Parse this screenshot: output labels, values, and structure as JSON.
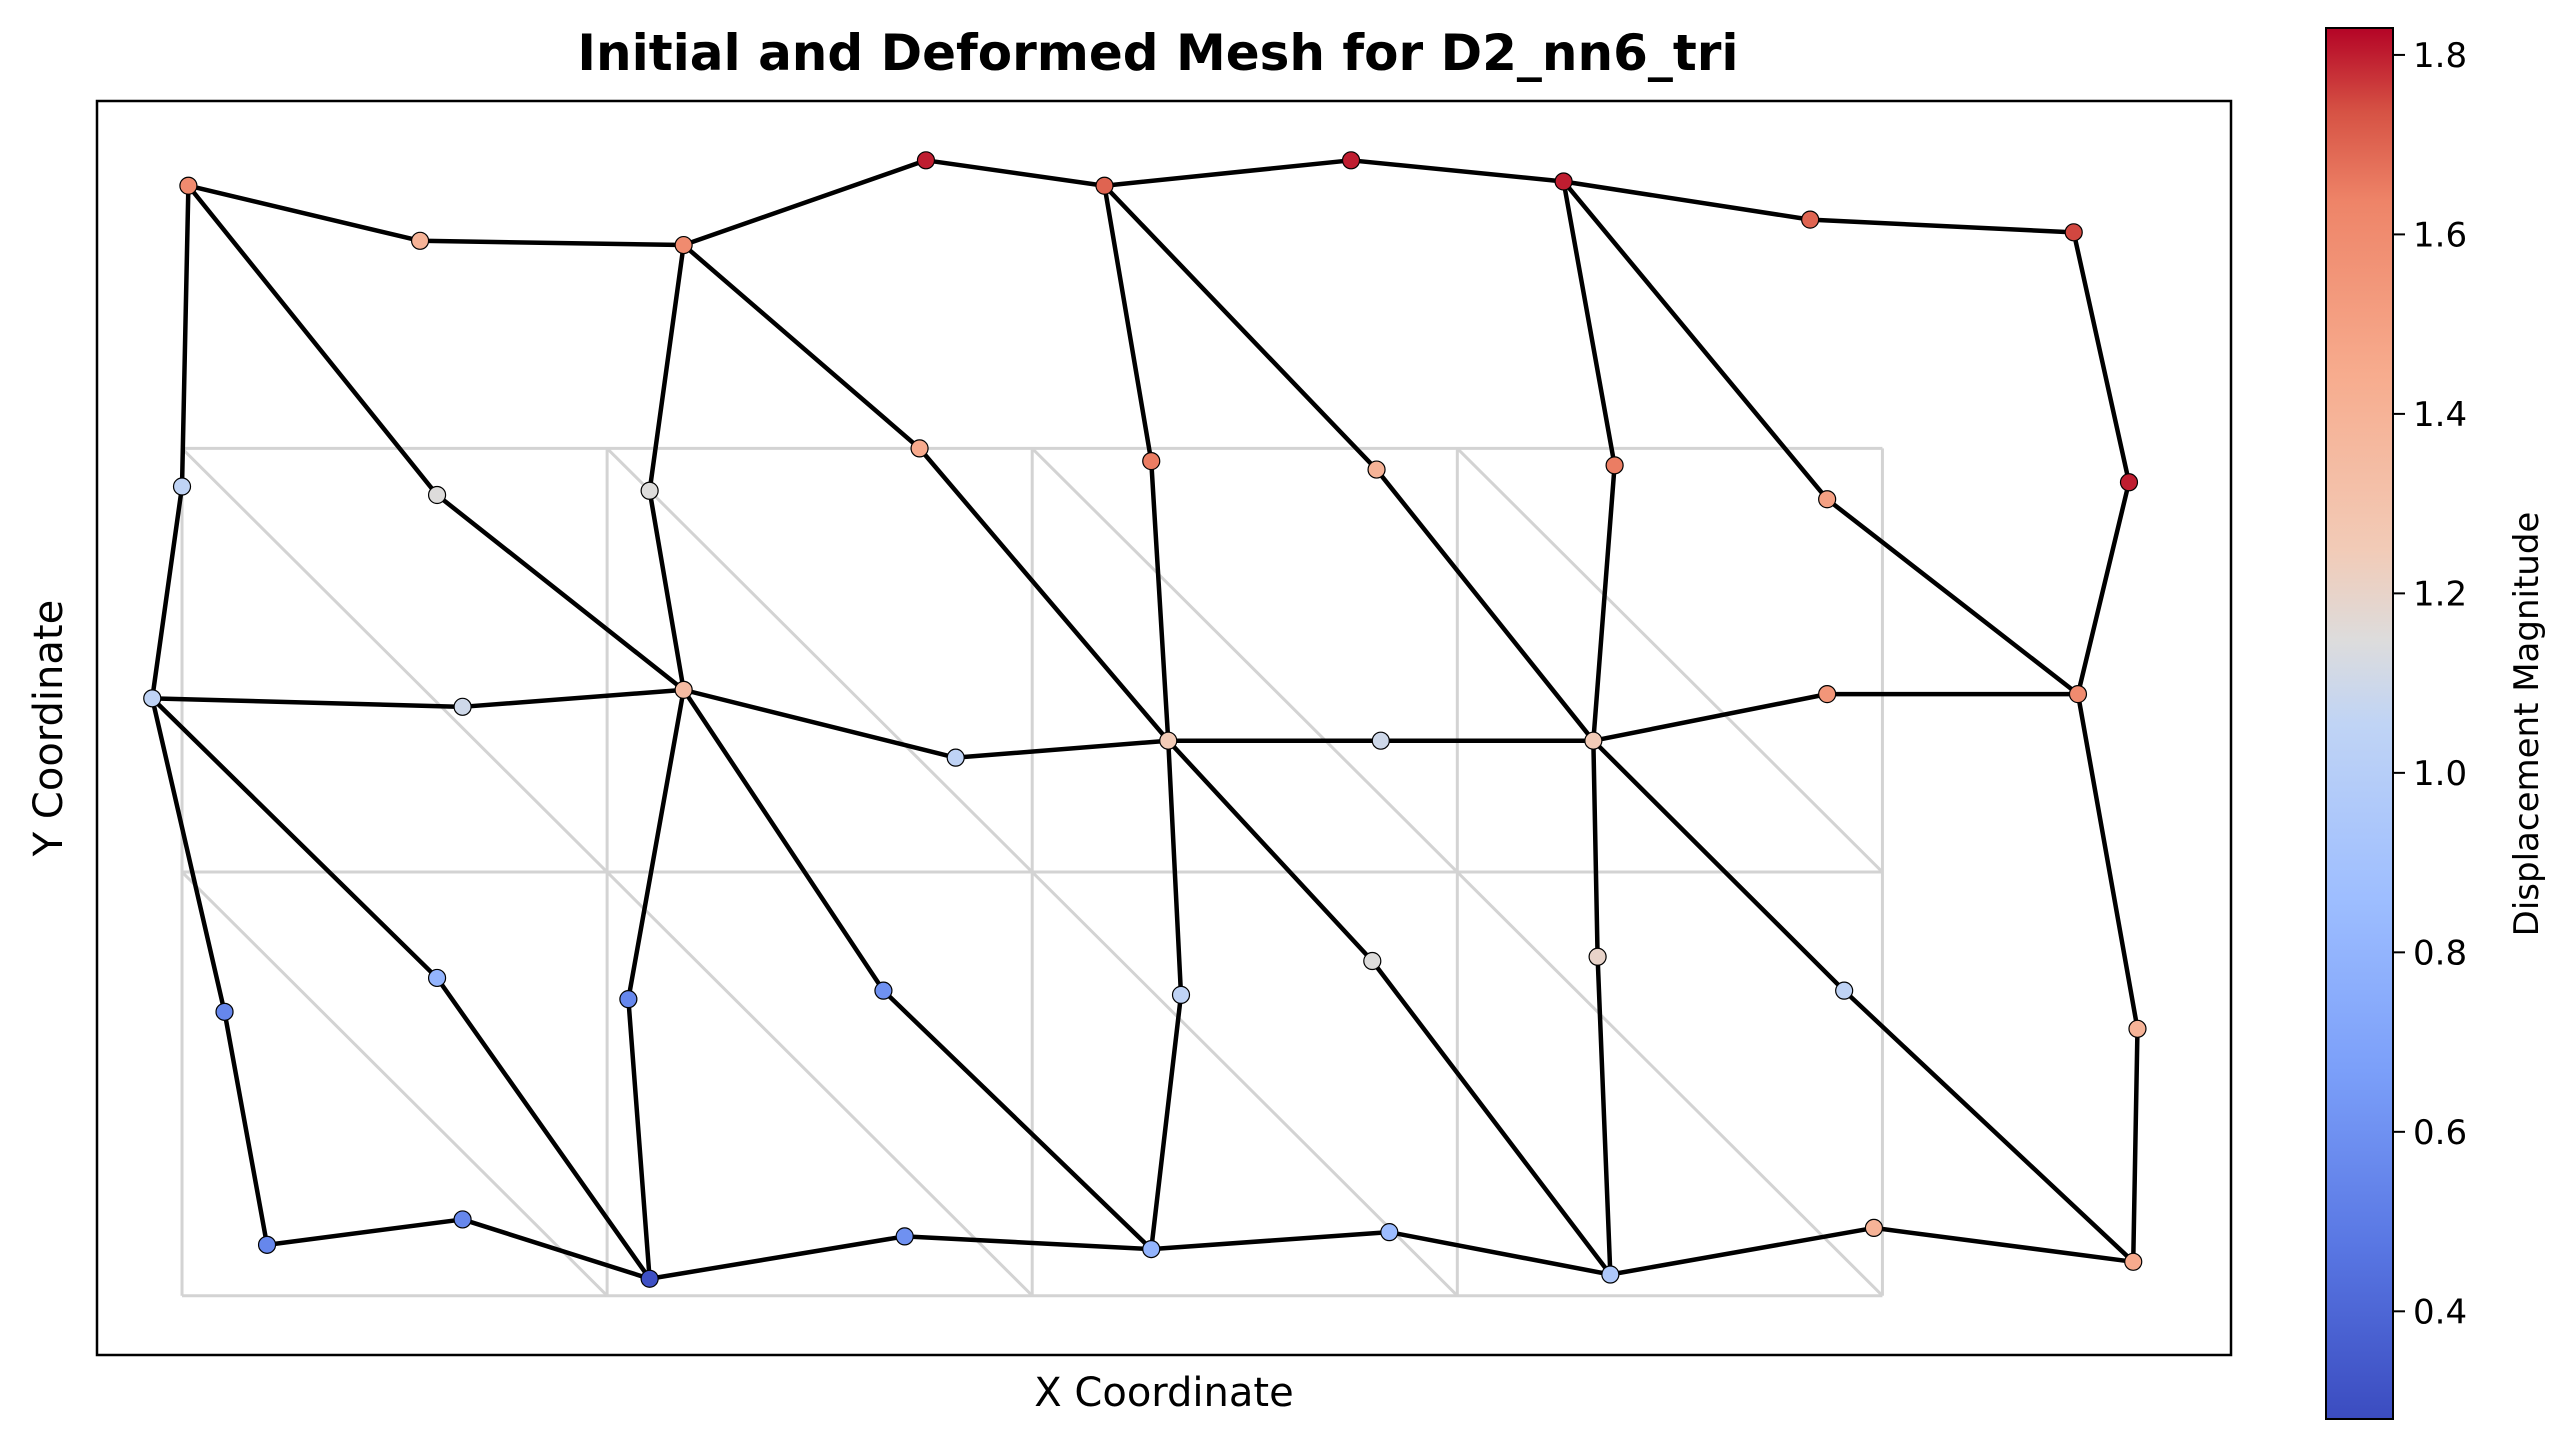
{
  "chart_data": {
    "type": "scatter",
    "title": "Initial and Deformed Mesh for D2_nn6_tri",
    "xlabel": "X Coordinate",
    "ylabel": "Y Coordinate",
    "xlim": [
      -0.2,
      4.82
    ],
    "ylim": [
      -0.14,
      2.82
    ],
    "grid": false,
    "initial_mesh": {
      "color": "#d3d3d3",
      "nx": 4,
      "ny": 2,
      "width": 4,
      "height": 2
    },
    "deformed_mesh": {
      "edge_color": "#000000",
      "nodes": [
        {
          "x": 0.015,
          "y": 2.62,
          "u": 1.6
        },
        {
          "x": 0.56,
          "y": 2.49,
          "u": 1.4
        },
        {
          "x": 1.18,
          "y": 2.48,
          "u": 1.6
        },
        {
          "x": 1.75,
          "y": 2.68,
          "u": 1.8
        },
        {
          "x": 2.17,
          "y": 2.62,
          "u": 1.7
        },
        {
          "x": 2.75,
          "y": 2.68,
          "u": 1.8
        },
        {
          "x": 3.25,
          "y": 2.63,
          "u": 1.8
        },
        {
          "x": 3.83,
          "y": 2.54,
          "u": 1.7
        },
        {
          "x": 4.45,
          "y": 2.51,
          "u": 1.75
        },
        {
          "x": 0.0,
          "y": 1.91,
          "u": 1.05
        },
        {
          "x": 0.6,
          "y": 1.89,
          "u": 1.15
        },
        {
          "x": 1.1,
          "y": 1.9,
          "u": 1.15
        },
        {
          "x": 1.735,
          "y": 2.0,
          "u": 1.45
        },
        {
          "x": 2.28,
          "y": 1.97,
          "u": 1.65
        },
        {
          "x": 2.81,
          "y": 1.95,
          "u": 1.4
        },
        {
          "x": 3.37,
          "y": 1.96,
          "u": 1.65
        },
        {
          "x": 3.87,
          "y": 1.88,
          "u": 1.5
        },
        {
          "x": 4.58,
          "y": 1.92,
          "u": 1.8
        },
        {
          "x": -0.07,
          "y": 1.41,
          "u": 1.05
        },
        {
          "x": 0.66,
          "y": 1.39,
          "u": 1.1
        },
        {
          "x": 1.18,
          "y": 1.43,
          "u": 1.35
        },
        {
          "x": 1.82,
          "y": 1.27,
          "u": 1.05
        },
        {
          "x": 2.32,
          "y": 1.31,
          "u": 1.25
        },
        {
          "x": 2.82,
          "y": 1.31,
          "u": 1.1
        },
        {
          "x": 3.32,
          "y": 1.31,
          "u": 1.25
        },
        {
          "x": 3.87,
          "y": 1.42,
          "u": 1.55
        },
        {
          "x": 4.46,
          "y": 1.42,
          "u": 1.6
        },
        {
          "x": 0.1,
          "y": 0.67,
          "u": 0.55
        },
        {
          "x": 0.6,
          "y": 0.75,
          "u": 0.8
        },
        {
          "x": 1.05,
          "y": 0.7,
          "u": 0.55
        },
        {
          "x": 1.65,
          "y": 0.72,
          "u": 0.6
        },
        {
          "x": 2.35,
          "y": 0.71,
          "u": 1.05
        },
        {
          "x": 2.8,
          "y": 0.79,
          "u": 1.15
        },
        {
          "x": 3.33,
          "y": 0.8,
          "u": 1.2
        },
        {
          "x": 3.91,
          "y": 0.72,
          "u": 1.05
        },
        {
          "x": 4.6,
          "y": 0.63,
          "u": 1.4
        },
        {
          "x": 0.2,
          "y": 0.12,
          "u": 0.55
        },
        {
          "x": 0.66,
          "y": 0.18,
          "u": 0.55
        },
        {
          "x": 1.1,
          "y": 0.04,
          "u": 0.3
        },
        {
          "x": 1.7,
          "y": 0.14,
          "u": 0.6
        },
        {
          "x": 2.28,
          "y": 0.11,
          "u": 0.8
        },
        {
          "x": 2.84,
          "y": 0.15,
          "u": 0.85
        },
        {
          "x": 3.36,
          "y": 0.05,
          "u": 0.95
        },
        {
          "x": 3.98,
          "y": 0.16,
          "u": 1.4
        },
        {
          "x": 4.59,
          "y": 0.08,
          "u": 1.45
        }
      ],
      "edges": [
        [
          0,
          1
        ],
        [
          1,
          2
        ],
        [
          2,
          3
        ],
        [
          3,
          4
        ],
        [
          4,
          5
        ],
        [
          5,
          6
        ],
        [
          6,
          7
        ],
        [
          7,
          8
        ],
        [
          0,
          9
        ],
        [
          9,
          18
        ],
        [
          18,
          27
        ],
        [
          27,
          36
        ],
        [
          2,
          11
        ],
        [
          11,
          20
        ],
        [
          20,
          29
        ],
        [
          29,
          38
        ],
        [
          4,
          13
        ],
        [
          13,
          22
        ],
        [
          22,
          31
        ],
        [
          31,
          40
        ],
        [
          6,
          15
        ],
        [
          15,
          24
        ],
        [
          24,
          33
        ],
        [
          33,
          42
        ],
        [
          8,
          17
        ],
        [
          17,
          26
        ],
        [
          26,
          35
        ],
        [
          35,
          44
        ],
        [
          18,
          19
        ],
        [
          19,
          20
        ],
        [
          20,
          21
        ],
        [
          21,
          22
        ],
        [
          22,
          23
        ],
        [
          23,
          24
        ],
        [
          24,
          25
        ],
        [
          25,
          26
        ],
        [
          36,
          37
        ],
        [
          37,
          38
        ],
        [
          38,
          39
        ],
        [
          39,
          40
        ],
        [
          40,
          41
        ],
        [
          41,
          42
        ],
        [
          42,
          43
        ],
        [
          43,
          44
        ],
        [
          0,
          10
        ],
        [
          10,
          20
        ],
        [
          2,
          12
        ],
        [
          12,
          22
        ],
        [
          4,
          14
        ],
        [
          14,
          24
        ],
        [
          6,
          16
        ],
        [
          16,
          26
        ],
        [
          18,
          28
        ],
        [
          28,
          38
        ],
        [
          20,
          30
        ],
        [
          30,
          40
        ],
        [
          22,
          32
        ],
        [
          32,
          42
        ],
        [
          24,
          34
        ],
        [
          34,
          44
        ]
      ]
    },
    "colorbar": {
      "label": "Displacement Magnitude",
      "colormap": "coolwarm",
      "range": [
        0.28,
        1.83
      ],
      "ticks": [
        0.4,
        0.6,
        0.8,
        1.0,
        1.2,
        1.4,
        1.6,
        1.8
      ],
      "tick_labels": [
        "0.4",
        "0.6",
        "0.8",
        "1.0",
        "1.2",
        "1.4",
        "1.6",
        "1.8"
      ]
    }
  }
}
